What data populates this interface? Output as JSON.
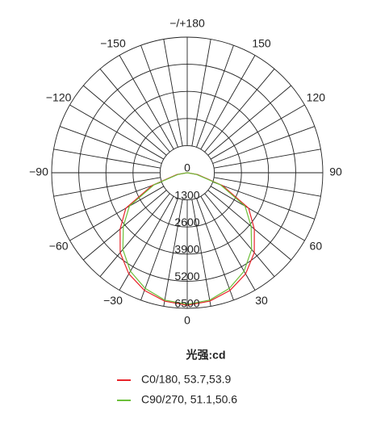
{
  "chart_data": {
    "type": "polar",
    "legend_title": "光强:cd",
    "x": [
      -90,
      -80,
      -70,
      -60,
      -50,
      -40,
      -30,
      -20,
      -10,
      0,
      10,
      20,
      30,
      40,
      50,
      60,
      70,
      80,
      90
    ],
    "series": [
      {
        "name": "C0/180, 53.7,53.9",
        "color": "#e8242b",
        "values": [
          0,
          500,
          1800,
          3400,
          4200,
          5000,
          5600,
          6000,
          6250,
          6350,
          6250,
          6000,
          5600,
          5000,
          4200,
          3400,
          1800,
          500,
          0
        ]
      },
      {
        "name": "C90/270, 51.1,50.6",
        "color": "#6cbf3a",
        "values": [
          0,
          450,
          1700,
          3200,
          4000,
          4800,
          5450,
          5900,
          6200,
          6300,
          6200,
          5900,
          5450,
          4800,
          4000,
          3200,
          1700,
          450,
          0
        ]
      }
    ],
    "rlim": [
      0,
      6500
    ],
    "rticks": [
      0,
      1300,
      2600,
      3900,
      5200,
      6500
    ],
    "angle_ticks": [
      0,
      30,
      60,
      90,
      120,
      150,
      {
        "value": 180,
        "label": "−/+180"
      },
      {
        "value": -150,
        "label": "−150"
      },
      {
        "value": -120,
        "label": "−120"
      },
      {
        "value": -90,
        "label": "−90"
      },
      {
        "value": -60,
        "label": "−60"
      },
      {
        "value": -30,
        "label": "−30"
      }
    ],
    "grid": true
  }
}
